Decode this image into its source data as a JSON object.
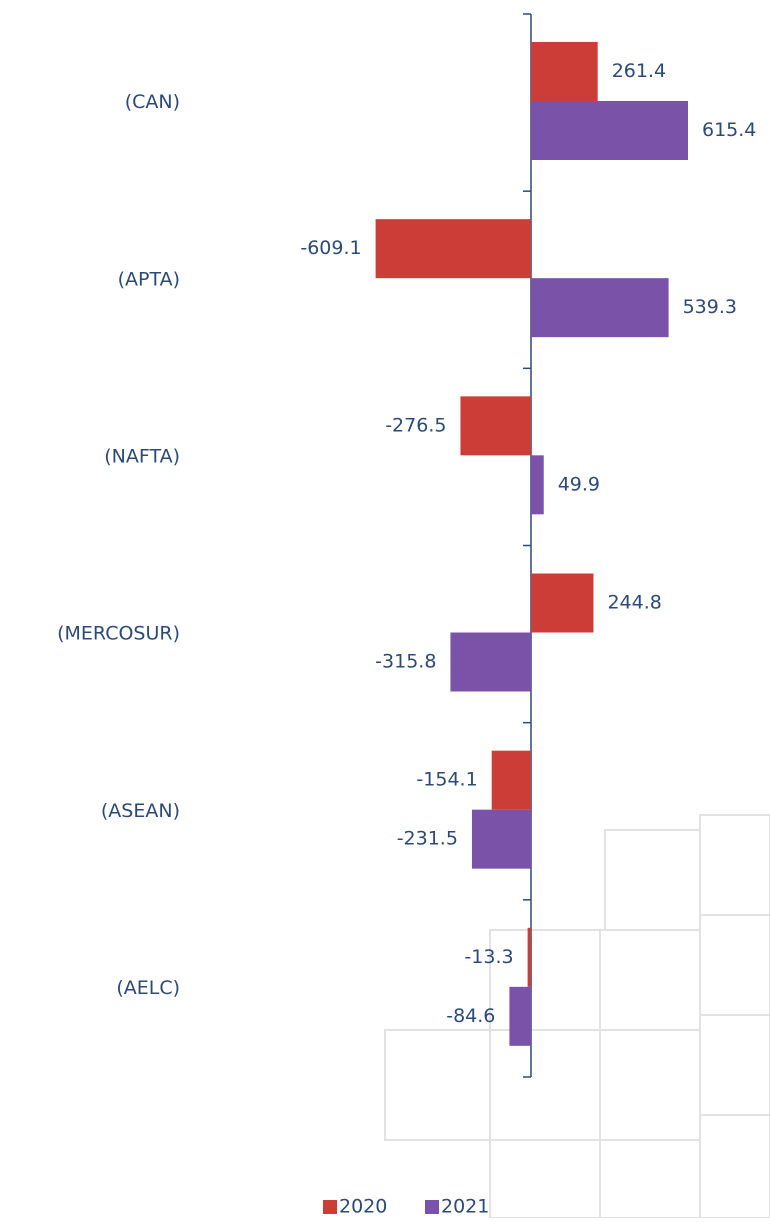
{
  "chart_data": {
    "type": "hbar",
    "categories": [
      "(CAN)",
      "(APTA)",
      "(NAFTA)",
      "(MERCOSUR)",
      "(ASEAN)",
      "(AELC)"
    ],
    "series": [
      {
        "name": "2020",
        "color": "#cc3d38",
        "values": [
          261.4,
          -609.1,
          -276.5,
          244.8,
          -154.1,
          -13.3
        ]
      },
      {
        "name": "2021",
        "color": "#7a52a8",
        "values": [
          615.4,
          539.3,
          49.9,
          -315.8,
          -231.5,
          -84.6
        ]
      }
    ],
    "legend": "bottom"
  }
}
